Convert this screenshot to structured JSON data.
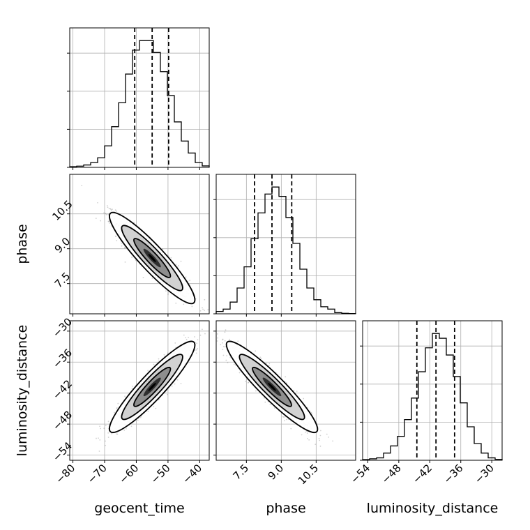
{
  "chart_data": {
    "type": "corner",
    "parameters": [
      "geocent_time",
      "phase",
      "luminosity_distance"
    ],
    "axis_labels": {
      "geocent_time": "geocent_time",
      "phase": "phase",
      "luminosity_distance": "luminosity_distance"
    },
    "ranges": {
      "geocent_time": [
        -81,
        -37
      ],
      "phase": [
        6.2,
        12.2
      ],
      "luminosity_distance": [
        -55,
        -28
      ]
    },
    "ticks": {
      "geocent_time": [
        {
          "v": -80,
          "label": "−80"
        },
        {
          "v": -70,
          "label": "−70"
        },
        {
          "v": -60,
          "label": "−60"
        },
        {
          "v": -50,
          "label": "−50"
        },
        {
          "v": -40,
          "label": "−40"
        }
      ],
      "phase": [
        {
          "v": 7.5,
          "label": "7.5"
        },
        {
          "v": 9.0,
          "label": "9.0"
        },
        {
          "v": 10.5,
          "label": "10.5"
        }
      ],
      "luminosity_distance": [
        {
          "v": -54,
          "label": "−54"
        },
        {
          "v": -48,
          "label": "−48"
        },
        {
          "v": -42,
          "label": "−42"
        },
        {
          "v": -36,
          "label": "−36"
        },
        {
          "v": -30,
          "label": "−30"
        }
      ]
    },
    "quantiles": {
      "geocent_time": [
        -60.5,
        -55.0,
        -49.8
      ],
      "phase": [
        7.85,
        8.6,
        9.45
      ],
      "luminosity_distance": [
        -44.5,
        -40.8,
        -37.2
      ]
    },
    "marginals": {
      "geocent_time": {
        "x_start": -81,
        "bin_width": 2.2,
        "counts": [
          0.3,
          0.5,
          1,
          2,
          4,
          9,
          17,
          27,
          39,
          49,
          53,
          53,
          48,
          40,
          30,
          19,
          11,
          6,
          2,
          0.6
        ]
      },
      "phase": {
        "x_start": 6.2,
        "bin_width": 0.3,
        "counts": [
          1,
          2,
          5,
          11,
          20,
          32,
          43,
          51,
          54,
          50,
          41,
          30,
          19,
          11,
          6,
          3,
          2,
          0.5,
          0.2,
          0.1
        ]
      },
      "luminosity_distance": {
        "x_start": -55,
        "bin_width": 1.35,
        "counts": [
          0.3,
          0.6,
          1,
          3,
          6,
          10,
          17,
          26,
          37,
          47,
          53,
          51,
          44,
          35,
          24,
          14,
          7,
          3,
          1,
          0.4
        ]
      }
    },
    "joint": {
      "phase_vs_geocent_time": {
        "mean": [
          -55,
          8.6
        ],
        "std": [
          5.5,
          0.8
        ],
        "corr": -0.92
      },
      "luminosity_distance_vs_geocent_time": {
        "mean": [
          -55,
          -40.8
        ],
        "std": [
          5.5,
          3.6
        ],
        "corr": 0.92
      },
      "luminosity_distance_vs_phase": {
        "mean": [
          8.6,
          -40.8
        ],
        "std": [
          0.8,
          3.6
        ],
        "corr": -0.93
      }
    }
  }
}
